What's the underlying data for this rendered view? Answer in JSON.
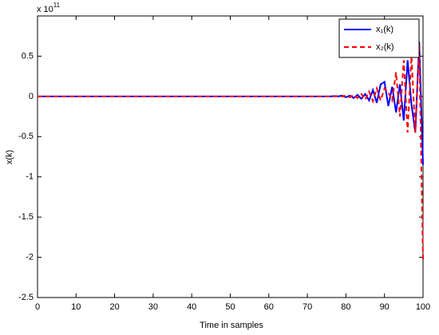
{
  "chart_data": {
    "type": "line",
    "x_label": "Time in samples",
    "y_label": "x(k)",
    "y_multiplier": {
      "base": "x 10",
      "exponent": "11"
    },
    "x": [
      0,
      1,
      2,
      3,
      4,
      5,
      6,
      7,
      8,
      9,
      10,
      11,
      12,
      13,
      14,
      15,
      16,
      17,
      18,
      19,
      20,
      21,
      22,
      23,
      24,
      25,
      26,
      27,
      28,
      29,
      30,
      31,
      32,
      33,
      34,
      35,
      36,
      37,
      38,
      39,
      40,
      41,
      42,
      43,
      44,
      45,
      46,
      47,
      48,
      49,
      50,
      51,
      52,
      53,
      54,
      55,
      56,
      57,
      58,
      59,
      60,
      61,
      62,
      63,
      64,
      65,
      66,
      67,
      68,
      69,
      70,
      71,
      72,
      73,
      74,
      75,
      76,
      77,
      78,
      79,
      80,
      81,
      82,
      83,
      84,
      85,
      86,
      87,
      88,
      89,
      90,
      91,
      92,
      93,
      94,
      95,
      96,
      97,
      98,
      99,
      100
    ],
    "series": [
      {
        "name": "x₁(k)",
        "color": "#0000ff",
        "dash": false,
        "values": [
          0,
          0,
          0,
          0,
          0,
          0,
          0,
          0,
          0,
          0,
          0,
          0,
          0,
          0,
          0,
          0,
          0,
          0,
          0,
          0,
          0,
          0,
          0,
          0,
          0,
          0,
          0,
          0,
          0,
          0,
          0,
          0,
          0,
          0,
          0,
          0,
          0,
          0,
          0,
          0,
          0,
          0,
          0,
          0,
          0,
          0,
          0,
          0,
          0,
          0,
          0,
          0,
          0,
          0,
          0,
          0,
          0,
          0,
          0,
          0,
          0,
          0,
          0,
          0,
          0,
          0,
          0,
          0,
          0,
          0,
          0,
          0,
          0,
          0,
          0,
          0,
          0,
          0.005,
          0,
          0.01,
          -0.01,
          0.01,
          -0.02,
          0.02,
          -0.03,
          0.03,
          -0.05,
          0.08,
          -0.08,
          0.15,
          0.18,
          -0.12,
          0.12,
          -0.2,
          0.15,
          -0.3,
          0.45,
          -0.1,
          -0.45,
          0.68,
          -0.85
        ]
      },
      {
        "name": "x₂(k)",
        "color": "#ff0000",
        "dash": true,
        "values": [
          0,
          0,
          0,
          0,
          0,
          0,
          0,
          0,
          0,
          0,
          0,
          0,
          0,
          0,
          0,
          0,
          0,
          0,
          0,
          0,
          0,
          0,
          0,
          0,
          0,
          0,
          0,
          0,
          0,
          0,
          0,
          0,
          0,
          0,
          0,
          0,
          0,
          0,
          0,
          0,
          0,
          0,
          0,
          0,
          0,
          0,
          0,
          0,
          0,
          0,
          0,
          0,
          0,
          0,
          0,
          0,
          0,
          0,
          0,
          0,
          0,
          0,
          0,
          0,
          0,
          0,
          0,
          0,
          0,
          0,
          0,
          0,
          0,
          0,
          0,
          0,
          0,
          0,
          0.005,
          0,
          0.01,
          -0.01,
          0.02,
          -0.02,
          0.03,
          -0.04,
          0.06,
          -0.06,
          0.1,
          -0.05,
          0.1,
          0.05,
          -0.05,
          0.3,
          -0.25,
          0.45,
          -0.45,
          0.5,
          -0.45,
          0.65,
          -2.05
        ]
      }
    ],
    "xlim": [
      0,
      100
    ],
    "xticks": [
      0,
      10,
      20,
      30,
      40,
      50,
      60,
      70,
      80,
      90,
      100
    ],
    "ylim": [
      -2.5,
      1
    ],
    "yticks": [
      -2.5,
      -2,
      -1.5,
      -1,
      -0.5,
      0,
      0.5
    ],
    "legend": "top-right",
    "grid": false
  }
}
